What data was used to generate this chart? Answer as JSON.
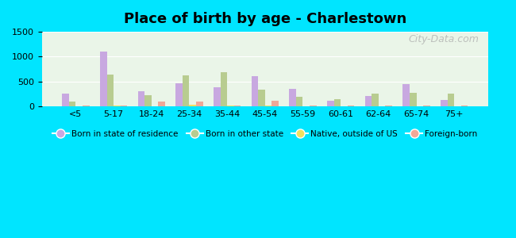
{
  "title": "Place of birth by age - Charlestown",
  "categories": [
    "<5",
    "5-17",
    "18-24",
    "25-34",
    "35-44",
    "45-54",
    "55-59",
    "60-61",
    "62-64",
    "65-74",
    "75+"
  ],
  "series": {
    "Born in state of residence": [
      250,
      1100,
      300,
      470,
      390,
      610,
      350,
      120,
      210,
      450,
      130
    ],
    "Born in other state": [
      100,
      640,
      220,
      620,
      690,
      330,
      195,
      145,
      255,
      265,
      260
    ],
    "Native, outside of US": [
      5,
      10,
      5,
      30,
      10,
      10,
      5,
      5,
      5,
      5,
      5
    ],
    "Foreign-born": [
      15,
      20,
      90,
      90,
      20,
      110,
      15,
      20,
      15,
      15,
      20
    ]
  },
  "colors": {
    "Born in state of residence": "#c8a8e0",
    "Born in other state": "#b8cc90",
    "Native, outside of US": "#f0e060",
    "Foreign-born": "#f0a898"
  },
  "ylim": [
    0,
    1500
  ],
  "yticks": [
    0,
    500,
    1000,
    1500
  ],
  "outer_bg": "#00e5ff",
  "inner_bg": "#eaf5e8",
  "bar_width": 0.18,
  "legend_labels": [
    "Born in state of residence",
    "Born in other state",
    "Native, outside of US",
    "Foreign-born"
  ]
}
